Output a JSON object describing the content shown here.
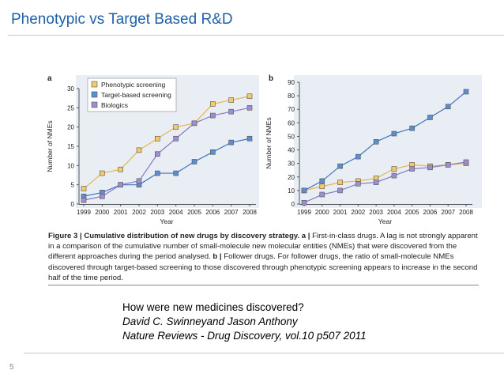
{
  "slide": {
    "title": "Phenotypic vs Target Based R&D",
    "page_number": "5"
  },
  "figure": {
    "caption_label": "Figure 3 | Cumulative distribution of new drugs by discovery strategy.",
    "caption_a_label": "a |",
    "caption_a_text": "First-in-class drugs. A lag is not strongly apparent in a comparison of the cumulative number of small-molecule new molecular entities (NMEs) that were discovered from the different approaches during the period analysed.",
    "caption_b_label": "b |",
    "caption_b_text": "Follower drugs. For follower drugs, the ratio of small-molecule NMEs discovered through target-based screening to those discovered through phenotypic screening appears to increase in the second half of the time period."
  },
  "citation": {
    "line1": "How were new medicines discovered?",
    "line2": "David C. Swinneyand Jason Anthony",
    "line3": "Nature Reviews - Drug Discovery, vol.10 p507 2011"
  },
  "colors": {
    "phenotypic": "#f2c96b",
    "target": "#5b8ed0",
    "biologics": "#9b8fd1",
    "phenotypic_line": "#e8b54c",
    "target_line": "#3f73c0",
    "biologics_line": "#8878c8",
    "panel_bg": "#e8eef3"
  },
  "chart_data": [
    {
      "panel": "a",
      "type": "line",
      "xlabel": "Year",
      "ylabel": "Number of NMEs",
      "x": [
        "1999",
        "2000",
        "2001",
        "2002",
        "2003",
        "2004",
        "2005",
        "2006",
        "2007",
        "2008"
      ],
      "ylim": [
        0,
        30
      ],
      "yticks": [
        0,
        5,
        10,
        15,
        20,
        25,
        30
      ],
      "legend_position": "top-left",
      "series": [
        {
          "name": "Phenotypic screening",
          "color_key": "phenotypic",
          "values": [
            4,
            8,
            9,
            14,
            17,
            20,
            21,
            26,
            27,
            28
          ]
        },
        {
          "name": "Target-based screening",
          "color_key": "target",
          "values": [
            2,
            3,
            5,
            5,
            8,
            8,
            11,
            13.5,
            16,
            17
          ]
        },
        {
          "name": "Biologics",
          "color_key": "biologics",
          "values": [
            1,
            2,
            5,
            6,
            13,
            17,
            21,
            23,
            24,
            25
          ]
        }
      ]
    },
    {
      "panel": "b",
      "type": "line",
      "xlabel": "Year",
      "ylabel": "Number of NMEs",
      "x": [
        "1999",
        "2000",
        "2001",
        "2002",
        "2003",
        "2004",
        "2005",
        "2006",
        "2007",
        "2008"
      ],
      "ylim": [
        0,
        90
      ],
      "yticks": [
        0,
        10,
        20,
        30,
        40,
        50,
        60,
        70,
        80,
        90
      ],
      "series": [
        {
          "color_key": "phenotypic",
          "values": [
            10,
            13,
            16,
            17,
            19,
            26,
            29,
            28,
            29,
            30
          ]
        },
        {
          "color_key": "target",
          "values": [
            10,
            17,
            28,
            35,
            46,
            52,
            56,
            64,
            72,
            83
          ]
        },
        {
          "color_key": "biologics",
          "values": [
            1,
            7,
            10,
            15,
            16,
            21,
            26,
            27,
            29,
            31
          ]
        }
      ]
    }
  ]
}
